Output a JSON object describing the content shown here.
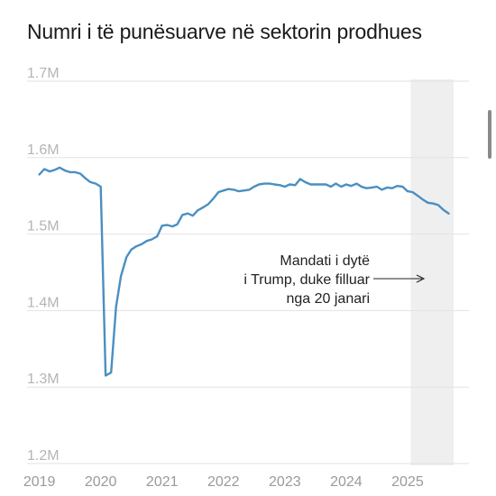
{
  "title": "Numri i të punësuarve në sektorin prodhues",
  "chart_data": {
    "type": "line",
    "title": "Numri i të punësuarve në sektorin prodhues",
    "xlabel": "",
    "ylabel": "",
    "ylim": [
      1.2,
      1.7
    ],
    "xlim": [
      2018.8,
      2026.0
    ],
    "y_ticks": [
      {
        "value": 1.7,
        "label": "1.7M"
      },
      {
        "value": 1.6,
        "label": "1.6M"
      },
      {
        "value": 1.5,
        "label": "1.5M"
      },
      {
        "value": 1.4,
        "label": "1.4M"
      },
      {
        "value": 1.3,
        "label": "1.3M"
      },
      {
        "value": 1.2,
        "label": "1.2M"
      }
    ],
    "x_ticks": [
      {
        "value": 2019,
        "label": "2019"
      },
      {
        "value": 2020,
        "label": "2020"
      },
      {
        "value": 2021,
        "label": "2021"
      },
      {
        "value": 2022,
        "label": "2022"
      },
      {
        "value": 2023,
        "label": "2023"
      },
      {
        "value": 2024,
        "label": "2024"
      },
      {
        "value": 2025,
        "label": "2025"
      }
    ],
    "grid": true,
    "line_color": "#4a8fc2",
    "shade_color": "#efefef",
    "shaded_region": {
      "from": 2025.05,
      "to": 2025.75
    },
    "annotation": {
      "lines": [
        "Mandati i dytë",
        "i Trump, duke filluar",
        "nga 20 janari"
      ],
      "arrow": "right"
    },
    "series": [
      {
        "name": "",
        "x": [
          2019.0,
          2019.08,
          2019.17,
          2019.25,
          2019.33,
          2019.42,
          2019.5,
          2019.58,
          2019.67,
          2019.75,
          2019.83,
          2019.92,
          2020.0,
          2020.08,
          2020.17,
          2020.25,
          2020.33,
          2020.42,
          2020.5,
          2020.58,
          2020.67,
          2020.75,
          2020.83,
          2020.92,
          2021.0,
          2021.08,
          2021.17,
          2021.25,
          2021.33,
          2021.42,
          2021.5,
          2021.58,
          2021.67,
          2021.75,
          2021.83,
          2021.92,
          2022.0,
          2022.08,
          2022.17,
          2022.25,
          2022.33,
          2022.42,
          2022.5,
          2022.58,
          2022.67,
          2022.75,
          2022.83,
          2022.92,
          2023.0,
          2023.08,
          2023.17,
          2023.25,
          2023.33,
          2023.42,
          2023.5,
          2023.58,
          2023.67,
          2023.75,
          2023.83,
          2023.92,
          2024.0,
          2024.08,
          2024.17,
          2024.25,
          2024.33,
          2024.42,
          2024.5,
          2024.58,
          2024.67,
          2024.75,
          2024.83,
          2024.92,
          2025.0,
          2025.08,
          2025.17,
          2025.25,
          2025.33,
          2025.42,
          2025.5,
          2025.58,
          2025.67
        ],
        "values": [
          1.578,
          1.585,
          1.582,
          1.584,
          1.587,
          1.583,
          1.581,
          1.581,
          1.579,
          1.573,
          1.568,
          1.566,
          1.562,
          1.315,
          1.319,
          1.405,
          1.445,
          1.47,
          1.48,
          1.484,
          1.487,
          1.491,
          1.493,
          1.497,
          1.511,
          1.512,
          1.51,
          1.513,
          1.525,
          1.527,
          1.524,
          1.531,
          1.535,
          1.539,
          1.546,
          1.555,
          1.557,
          1.559,
          1.558,
          1.556,
          1.557,
          1.558,
          1.562,
          1.565,
          1.566,
          1.566,
          1.565,
          1.564,
          1.562,
          1.565,
          1.564,
          1.572,
          1.568,
          1.565,
          1.565,
          1.565,
          1.565,
          1.562,
          1.566,
          1.562,
          1.565,
          1.563,
          1.566,
          1.562,
          1.56,
          1.561,
          1.562,
          1.558,
          1.561,
          1.56,
          1.563,
          1.562,
          1.556,
          1.555,
          1.55,
          1.545,
          1.541,
          1.54,
          1.538,
          1.532,
          1.527
        ]
      }
    ]
  }
}
